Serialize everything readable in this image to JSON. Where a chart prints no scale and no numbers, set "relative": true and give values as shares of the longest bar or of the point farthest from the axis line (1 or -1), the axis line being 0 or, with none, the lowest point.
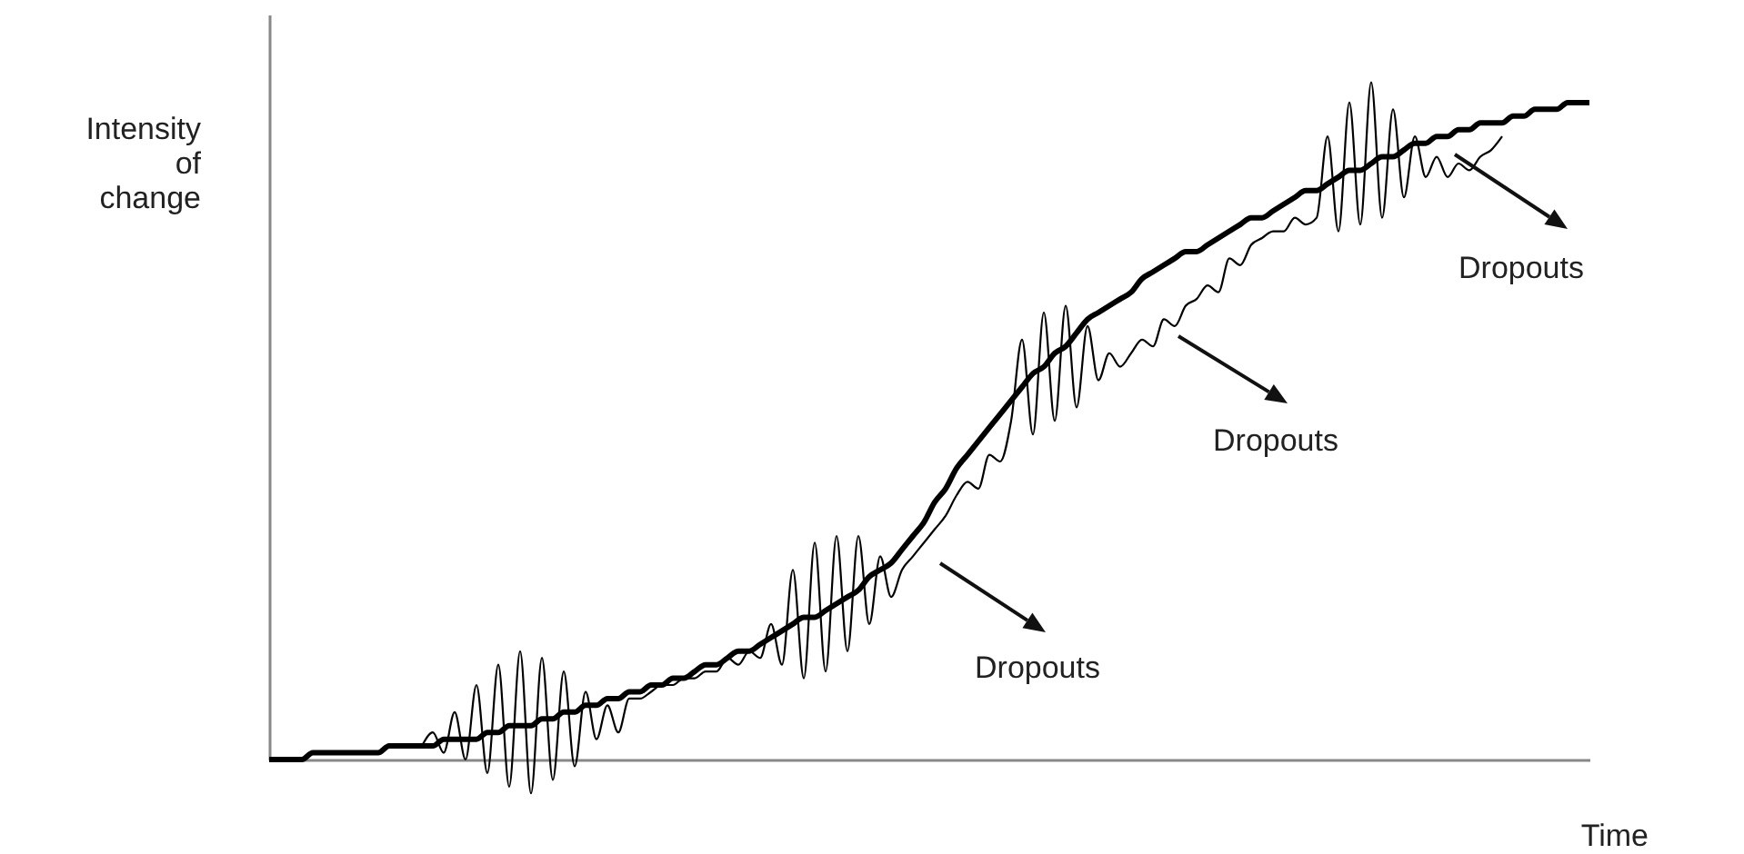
{
  "chart_data": {
    "type": "line",
    "relative": true,
    "xlabel": "Time",
    "ylabel": "Intensity of change",
    "categories": [
      null,
      null,
      null,
      null,
      null,
      null,
      null,
      null,
      null,
      null,
      null,
      null,
      null,
      null,
      null,
      null,
      null,
      null,
      null,
      null,
      null,
      null,
      null,
      null,
      null,
      null,
      null,
      null,
      null,
      null,
      null,
      null,
      null,
      null,
      null,
      null,
      null,
      null,
      null,
      null,
      null,
      null,
      null,
      null,
      null,
      null,
      null,
      null,
      null,
      null,
      null,
      null,
      null,
      null,
      null,
      null,
      null,
      null,
      null,
      null,
      null,
      null,
      null,
      null,
      null,
      null,
      null,
      null,
      null,
      null,
      null,
      null,
      null,
      null,
      null,
      null,
      null,
      null,
      null,
      null,
      null,
      null,
      null,
      null,
      null,
      null,
      null,
      null,
      null,
      null,
      null,
      null,
      null,
      null,
      null,
      null,
      null,
      null,
      null,
      null,
      null,
      null,
      null,
      null,
      null,
      null,
      null,
      null,
      null,
      null,
      null,
      null,
      null,
      null,
      null,
      null,
      null,
      null,
      null,
      null,
      null,
      null
    ],
    "series": [
      {
        "color": "#000000",
        "values": [
          0,
          0.0,
          0.0,
          0.0,
          0.01,
          0.01,
          0.01,
          0.01,
          0.01,
          0.01,
          0.01,
          0.02,
          0.02,
          0.02,
          0.02,
          0.02,
          0.03,
          0.03,
          0.03,
          0.03,
          0.04,
          0.04,
          0.05,
          0.05,
          0.05,
          0.06,
          0.06,
          0.07,
          0.07,
          0.08,
          0.08,
          0.09,
          0.09,
          0.1,
          0.1,
          0.11,
          0.11,
          0.12,
          0.12,
          0.13,
          0.14,
          0.14,
          0.15,
          0.16,
          0.16,
          0.17,
          0.18,
          0.19,
          0.2,
          0.21,
          0.21,
          0.22,
          0.23,
          0.24,
          0.25,
          0.27,
          0.28,
          0.29,
          0.31,
          0.33,
          0.35,
          0.38,
          0.4,
          0.43,
          0.45,
          0.47,
          0.49,
          0.51,
          0.53,
          0.55,
          0.57,
          0.58,
          0.6,
          0.61,
          0.63,
          0.65,
          0.66,
          0.67,
          0.68,
          0.69,
          0.71,
          0.72,
          0.73,
          0.74,
          0.75,
          0.75,
          0.76,
          0.77,
          0.78,
          0.79,
          0.8,
          0.8,
          0.81,
          0.82,
          0.83,
          0.84,
          0.84,
          0.85,
          0.86,
          0.87,
          0.87,
          0.88,
          0.89,
          0.89,
          0.9,
          0.91,
          0.91,
          0.92,
          0.92,
          0.93,
          0.93,
          0.94,
          0.94,
          0.94,
          0.95,
          0.95,
          0.96,
          0.96,
          0.96,
          0.97,
          0.97,
          0.97
        ]
      },
      {
        "color": "#000000",
        "values": [
          null,
          null,
          null,
          null,
          null,
          null,
          null,
          null,
          null,
          null,
          null,
          null,
          null,
          null,
          0.02,
          0.04,
          0.01,
          0.07,
          0.0,
          0.11,
          -0.02,
          0.14,
          -0.04,
          0.16,
          -0.05,
          0.15,
          -0.03,
          0.13,
          -0.01,
          0.1,
          0.03,
          0.08,
          0.04,
          0.09,
          0.09,
          0.1,
          0.11,
          0.11,
          0.12,
          0.12,
          0.13,
          0.13,
          0.15,
          0.14,
          0.16,
          0.15,
          0.2,
          0.14,
          0.28,
          0.12,
          0.32,
          0.13,
          0.33,
          0.16,
          0.33,
          0.2,
          0.3,
          0.24,
          0.28,
          0.3,
          0.32,
          0.34,
          0.36,
          0.39,
          0.41,
          0.4,
          0.45,
          0.44,
          0.5,
          0.62,
          0.48,
          0.66,
          0.5,
          0.67,
          0.52,
          0.64,
          0.56,
          0.6,
          0.58,
          0.6,
          0.62,
          0.61,
          0.65,
          0.64,
          0.67,
          0.68,
          0.7,
          0.69,
          0.74,
          0.73,
          0.76,
          0.77,
          0.78,
          0.78,
          0.8,
          0.79,
          0.8,
          0.92,
          0.78,
          0.97,
          0.79,
          1.0,
          0.8,
          0.96,
          0.83,
          0.92,
          0.86,
          0.89,
          0.86,
          0.88,
          0.87,
          0.89,
          0.9,
          0.92,
          null,
          null,
          null,
          null,
          null,
          null,
          null,
          null
        ]
      }
    ],
    "annotations": [
      "Dropouts",
      "Dropouts",
      "Dropouts"
    ]
  }
}
